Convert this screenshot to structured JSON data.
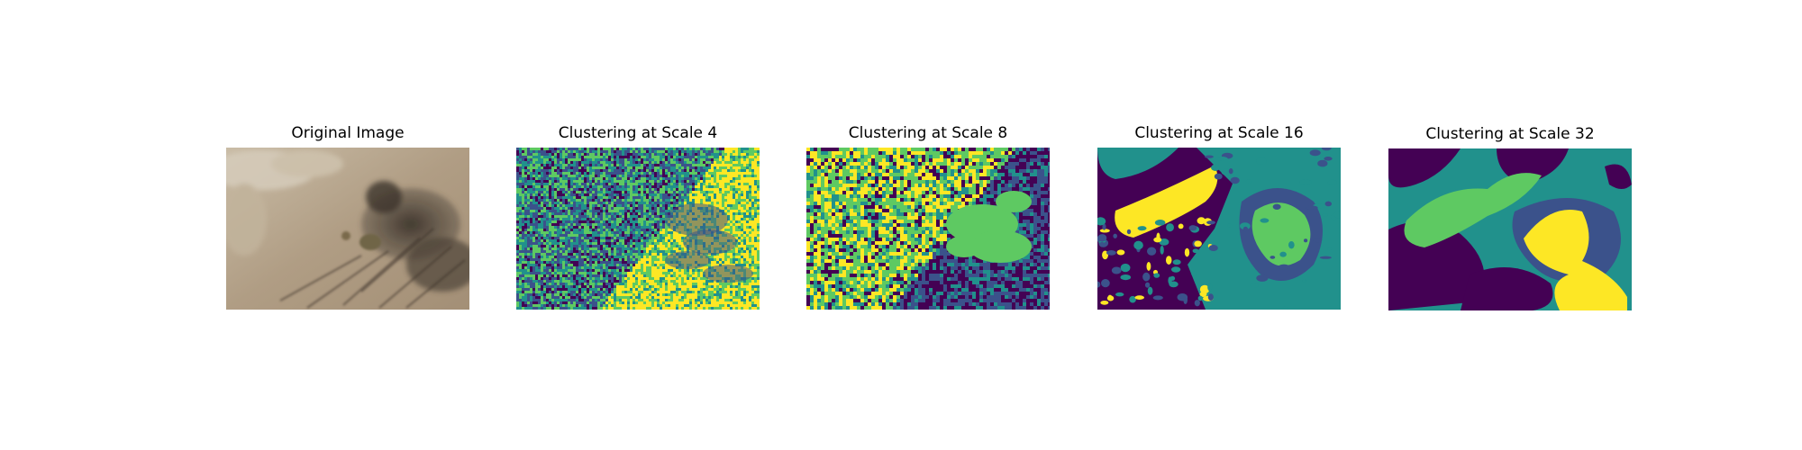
{
  "figure": {
    "panels": [
      {
        "title": "Original Image",
        "kind": "photo"
      },
      {
        "title": "Clustering at Scale 4",
        "kind": "cluster-fine"
      },
      {
        "title": "Clustering at Scale 8",
        "kind": "cluster-medium"
      },
      {
        "title": "Clustering at Scale 16",
        "kind": "cluster-coarse"
      },
      {
        "title": "Clustering at Scale 32",
        "kind": "cluster-blobs"
      }
    ],
    "colormap": [
      "#440154",
      "#3b528b",
      "#21918c",
      "#5ec962",
      "#fde725"
    ],
    "photo_colors": {
      "ground": "#b5a48a",
      "shadow": "#4a4238",
      "grass": "#d2c7b4"
    }
  }
}
